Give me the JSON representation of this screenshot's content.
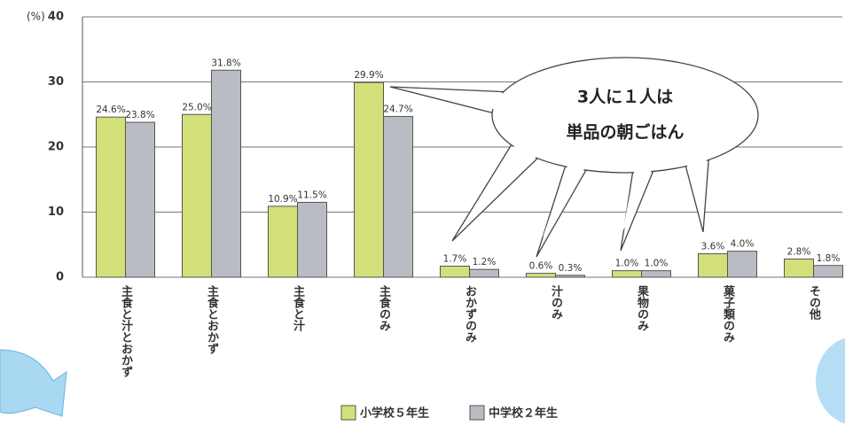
{
  "chart_data": {
    "type": "bar",
    "y_label": "(%)",
    "categories": [
      "主食と汁とおかず",
      "主食とおかず",
      "主食と汁",
      "主食のみ",
      "おかずのみ",
      "汁のみ",
      "果物のみ",
      "菓子類のみ",
      "その他"
    ],
    "series": [
      {
        "name": "小学校５年生",
        "color": "#d3e07a",
        "values": [
          24.6,
          25.0,
          10.9,
          29.9,
          1.7,
          0.6,
          1.0,
          3.6,
          2.8
        ],
        "value_labels": [
          "24.6%",
          "25.0%",
          "10.9%",
          "29.9%",
          "1.7%",
          "0.6%",
          "1.0%",
          "3.6%",
          "2.8%"
        ]
      },
      {
        "name": "中学校２年生",
        "color": "#b9bcc2",
        "values": [
          23.8,
          31.8,
          11.5,
          24.7,
          1.2,
          0.3,
          1.0,
          4.0,
          1.8
        ],
        "value_labels": [
          "23.8%",
          "31.8%",
          "11.5%",
          "24.7%",
          "1.2%",
          "0.3%",
          "1.0%",
          "4.0%",
          "1.8%"
        ]
      }
    ],
    "ylim": [
      0,
      40
    ],
    "yticks": [
      0,
      10,
      20,
      30,
      40
    ],
    "grid": true,
    "annotations": [
      "3人に１人は",
      "単品の朝ごはん"
    ]
  }
}
